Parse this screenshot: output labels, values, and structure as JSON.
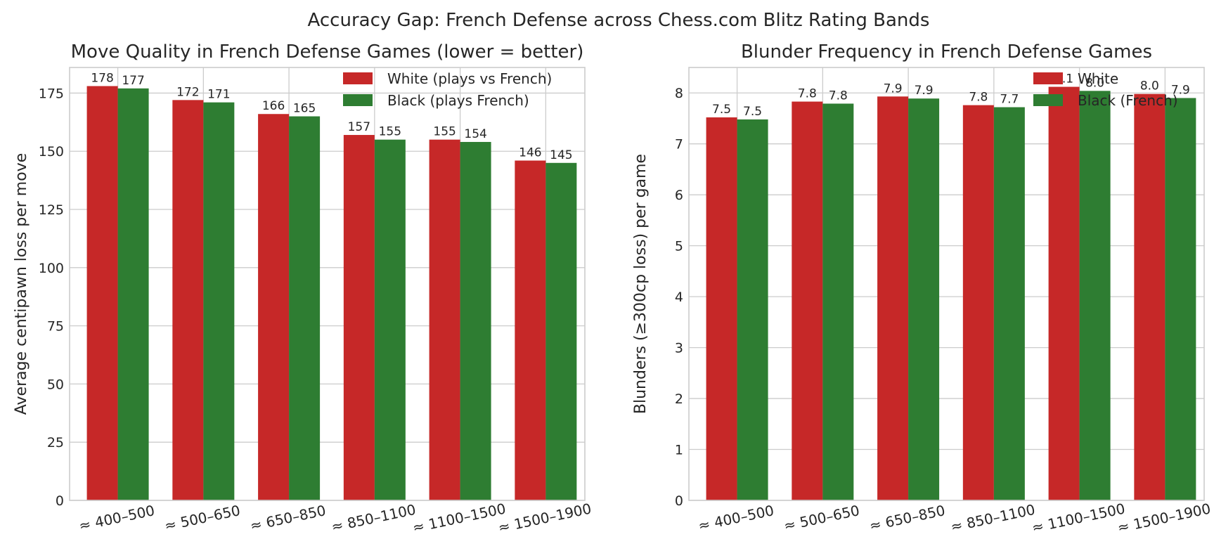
{
  "suptitle": "Accuracy Gap: French Defense across Chess.com Blitz Rating Bands",
  "colors": {
    "white": "#c62828",
    "black": "#2e7d32",
    "grid": "#cccccc",
    "text": "#262626"
  },
  "chart_data": [
    {
      "type": "bar",
      "title": "Move Quality in French Defense Games (lower = better)",
      "xlabel": "",
      "ylabel": "Average centipawn loss per move",
      "categories": [
        "≈ 400–500",
        "≈ 500–650",
        "≈ 650–850",
        "≈ 850–1100",
        "≈ 1100–1500",
        "≈ 1500–1900"
      ],
      "series": [
        {
          "name": "White (plays vs French)",
          "color": "#c62828",
          "values": [
            178,
            172,
            166,
            157,
            155,
            146
          ],
          "labels": [
            "178",
            "172",
            "166",
            "157",
            "155",
            "146"
          ]
        },
        {
          "name": "Black (plays French)",
          "color": "#2e7d32",
          "values": [
            177,
            171,
            165,
            155,
            154,
            145
          ],
          "labels": [
            "177",
            "171",
            "165",
            "155",
            "154",
            "145"
          ]
        }
      ],
      "ylim": [
        0,
        186
      ],
      "yticks": [
        0,
        25,
        50,
        75,
        100,
        125,
        150,
        175
      ],
      "ytick_labels": [
        "0",
        "25",
        "50",
        "75",
        "100",
        "125",
        "150",
        "175"
      ],
      "grid": true,
      "legend_position": "upper right"
    },
    {
      "type": "bar",
      "title": "Blunder Frequency in French Defense Games",
      "xlabel": "",
      "ylabel": "Blunders (≥300cp loss) per game",
      "categories": [
        "≈ 400–500",
        "≈ 500–650",
        "≈ 650–850",
        "≈ 850–1100",
        "≈ 1100–1500",
        "≈ 1500–1900"
      ],
      "series": [
        {
          "name": "White",
          "color": "#c62828",
          "values": [
            7.52,
            7.83,
            7.93,
            7.76,
            8.12,
            7.98
          ],
          "labels": [
            "7.5",
            "7.8",
            "7.9",
            "7.8",
            "8.1",
            "8.0"
          ]
        },
        {
          "name": "Black (French)",
          "color": "#2e7d32",
          "values": [
            7.48,
            7.79,
            7.89,
            7.72,
            8.04,
            7.9
          ],
          "labels": [
            "7.5",
            "7.8",
            "7.9",
            "7.7",
            "8.0",
            "7.9"
          ]
        }
      ],
      "ylim": [
        0,
        8.5
      ],
      "yticks": [
        0,
        1,
        2,
        3,
        4,
        5,
        6,
        7,
        8
      ],
      "ytick_labels": [
        "0",
        "1",
        "2",
        "3",
        "4",
        "5",
        "6",
        "7",
        "8"
      ],
      "grid": true,
      "legend_position": "upper right"
    }
  ]
}
